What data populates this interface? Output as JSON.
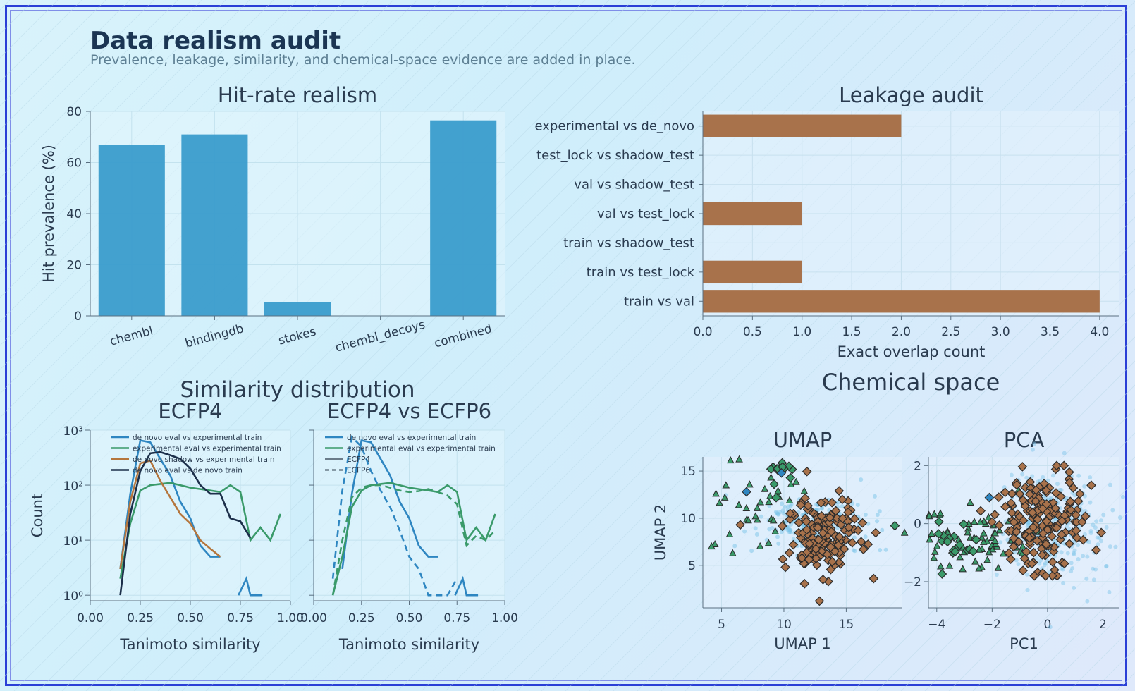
{
  "header": {
    "title": "Data realism audit",
    "subtitle": "Prevalence, leakage, similarity, and chemical-space evidence are added in place."
  },
  "colors": {
    "bar_blue": "#3a9ccc",
    "bar_brown": "#a8724b",
    "line_blue": "#2e86c1",
    "line_green": "#3a9a6a",
    "line_orange": "#b5763d",
    "line_navy": "#1c2f4a",
    "umap_blue": "#79c4e8"
  },
  "chart_data": [
    {
      "type": "bar",
      "title": "Hit-rate realism",
      "xlabel": "",
      "ylabel": "Hit prevalence (%)",
      "categories": [
        "chembl",
        "bindingdb",
        "stokes",
        "chembl_decoys",
        "combined"
      ],
      "values": [
        67,
        71,
        5.5,
        0,
        76.5
      ],
      "ylim": [
        0,
        80
      ],
      "yticks": [
        "0",
        "20",
        "40",
        "60",
        "80"
      ]
    },
    {
      "type": "bar",
      "orientation": "horizontal",
      "title": "Leakage audit",
      "xlabel": "Exact overlap count",
      "ylabel": "",
      "categories": [
        "experimental vs de_novo",
        "test_lock vs shadow_test",
        "val vs shadow_test",
        "val vs test_lock",
        "train vs shadow_test",
        "train vs test_lock",
        "train vs val"
      ],
      "values": [
        2,
        0,
        0,
        1,
        0,
        1,
        4
      ],
      "xlim": [
        0,
        4.2
      ],
      "xticks": [
        "0.0",
        "0.5",
        "1.0",
        "1.5",
        "2.0",
        "2.5",
        "3.0",
        "3.5",
        "4.0"
      ]
    },
    {
      "type": "line",
      "suptitle": "Similarity distribution",
      "title": "ECFP4",
      "xlabel": "Tanimoto similarity",
      "ylabel": "Count",
      "yscale": "log",
      "xlim": [
        0,
        1
      ],
      "xticks": [
        "0.00",
        "0.25",
        "0.50",
        "0.75",
        "1.00"
      ],
      "yticks": [
        "10⁰",
        "10¹",
        "10²",
        "10³"
      ],
      "series": [
        {
          "name": "de novo eval vs experimental train",
          "x": [
            0.15,
            0.2,
            0.25,
            0.3,
            0.35,
            0.4,
            0.45,
            0.5,
            0.55,
            0.6,
            0.65
          ],
          "y": [
            3,
            70,
            650,
            600,
            300,
            150,
            50,
            25,
            8,
            5,
            5
          ]
        },
        {
          "name": "experimental eval vs experimental train",
          "x": [
            0.15,
            0.2,
            0.25,
            0.3,
            0.35,
            0.4,
            0.45,
            0.5,
            0.55,
            0.6,
            0.65,
            0.7,
            0.75,
            0.8,
            0.85,
            0.9,
            0.95
          ],
          "y": [
            2,
            20,
            80,
            100,
            105,
            110,
            100,
            90,
            85,
            80,
            75,
            100,
            75,
            10,
            17,
            10,
            30
          ]
        },
        {
          "name": "de novo shadow vs experimental train",
          "x": [
            0.15,
            0.2,
            0.25,
            0.3,
            0.35,
            0.4,
            0.45,
            0.5,
            0.55,
            0.6,
            0.65
          ],
          "y": [
            3,
            50,
            250,
            280,
            120,
            60,
            30,
            20,
            10,
            7,
            5
          ]
        },
        {
          "name": "de novo eval vs de novo train",
          "x": [
            0.15,
            0.2,
            0.25,
            0.3,
            0.35,
            0.4,
            0.45,
            0.5,
            0.55,
            0.6,
            0.65,
            0.7,
            0.75,
            0.8
          ],
          "y": [
            1,
            30,
            180,
            380,
            400,
            350,
            300,
            200,
            100,
            70,
            70,
            25,
            22,
            11
          ]
        }
      ],
      "extra_series": {
        "x": [
          0.74,
          0.78,
          0.8,
          0.86
        ],
        "y": [
          1,
          2,
          1,
          1
        ]
      }
    },
    {
      "type": "line",
      "title": "ECFP4 vs ECFP6",
      "xlabel": "Tanimoto similarity",
      "ylabel": "",
      "yscale": "log",
      "xlim": [
        0,
        1
      ],
      "xticks": [
        "0.00",
        "0.25",
        "0.50",
        "0.75",
        "1.00"
      ],
      "legend": [
        "de novo eval vs experimental train",
        "experimental eval vs experimental train",
        "ECFP4",
        "ECFP6"
      ],
      "series": [
        {
          "name": "de novo eval vs experimental train",
          "style": "solid",
          "x": [
            0.15,
            0.2,
            0.25,
            0.3,
            0.35,
            0.4,
            0.45,
            0.5,
            0.55,
            0.6,
            0.65
          ],
          "y": [
            3,
            70,
            650,
            600,
            300,
            150,
            50,
            25,
            8,
            5,
            5
          ]
        },
        {
          "name": "experimental eval vs experimental train",
          "style": "solid",
          "x": [
            0.1,
            0.15,
            0.2,
            0.25,
            0.3,
            0.35,
            0.4,
            0.45,
            0.5,
            0.55,
            0.6,
            0.65,
            0.7,
            0.75,
            0.8,
            0.85,
            0.9,
            0.95
          ],
          "y": [
            1,
            5,
            40,
            80,
            100,
            105,
            110,
            100,
            90,
            85,
            80,
            75,
            100,
            75,
            10,
            17,
            10,
            30
          ]
        },
        {
          "name": "de novo eval vs experimental train",
          "style": "dashed",
          "x": [
            0.1,
            0.15,
            0.2,
            0.25,
            0.3,
            0.35,
            0.4,
            0.45,
            0.5,
            0.55,
            0.6,
            0.65,
            0.7,
            0.75
          ],
          "y": [
            2,
            80,
            750,
            500,
            180,
            80,
            40,
            15,
            5,
            3,
            1,
            1,
            1,
            2
          ]
        },
        {
          "name": "experimental eval vs experimental train",
          "style": "dashed",
          "x": [
            0.1,
            0.15,
            0.2,
            0.25,
            0.3,
            0.35,
            0.4,
            0.45,
            0.5,
            0.55,
            0.6,
            0.65,
            0.7,
            0.75,
            0.8,
            0.85,
            0.9,
            0.95
          ],
          "y": [
            1,
            10,
            60,
            90,
            100,
            100,
            90,
            80,
            75,
            78,
            85,
            75,
            65,
            45,
            8,
            12,
            10,
            15
          ]
        }
      ],
      "extra_series": {
        "x": [
          0.74,
          0.78,
          0.8,
          0.86
        ],
        "y": [
          1,
          2,
          1,
          1
        ]
      }
    },
    {
      "type": "scatter",
      "suptitle": "Chemical space",
      "title": "UMAP",
      "xlabel": "UMAP 1",
      "ylabel": "UMAP 2",
      "xlim": [
        3.5,
        19.5
      ],
      "ylim": [
        0.5,
        16.5
      ],
      "xticks": [
        "5",
        "10",
        "15"
      ],
      "yticks": [
        "5",
        "10",
        "15"
      ]
    },
    {
      "type": "scatter",
      "title": "PCA",
      "xlabel": "PC1",
      "ylabel": "",
      "xlim": [
        -4.3,
        2.6
      ],
      "ylim": [
        -2.9,
        2.3
      ],
      "xticks": [
        "−4",
        "−2",
        "0",
        "2"
      ],
      "yticks": [
        "−2",
        "0",
        "2"
      ]
    }
  ]
}
